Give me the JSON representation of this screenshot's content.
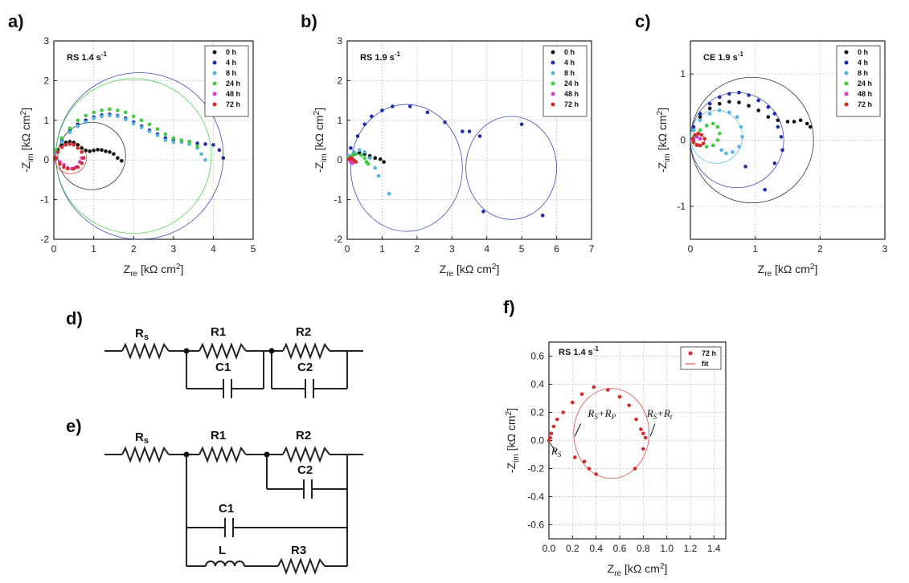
{
  "panel_labels": [
    "a)",
    "b)",
    "c)",
    "d)",
    "e)",
    "f)"
  ],
  "colors": {
    "0 h": "#111111",
    "4 h": "#1f2ea8",
    "8 h": "#56b4e0",
    "24 h": "#3ccc3c",
    "48 h": "#d63cc8",
    "72 h": "#d42a2a"
  },
  "axis_text": {
    "x_main": "Z",
    "x_sub": "re",
    "x_unit": " [kΩ cm",
    "x_sup": "2",
    "x_close": "]",
    "y_main": "-Z",
    "y_sub": "im",
    "y_unit": " [kΩ cm",
    "y_sup": "2",
    "y_close": "]"
  },
  "circuits": {
    "d": {
      "Rs": "R",
      "Rs_sub": "s",
      "R1": "R1",
      "R2": "R2",
      "C1": "C1",
      "C2": "C2"
    },
    "e": {
      "Rs": "R",
      "Rs_sub": "s",
      "R1": "R1",
      "R2": "R2",
      "C1": "C1",
      "C2": "C2",
      "L": "L",
      "R3": "R3"
    }
  },
  "chart_data": [
    {
      "panel": "a)",
      "type": "scatter",
      "annotation": "RS 1.4 s",
      "annotation_sup": "-1",
      "xlim": [
        0,
        5
      ],
      "ylim": [
        -2,
        3
      ],
      "xticks": [
        0,
        1,
        2,
        3,
        4,
        5
      ],
      "yticks": [
        -2,
        -1,
        0,
        1,
        2,
        3
      ],
      "grid": true,
      "legend_position": "top-right",
      "series": [
        {
          "name": "0 h",
          "x": [
            0.03,
            0.1,
            0.2,
            0.3,
            0.4,
            0.5,
            0.6,
            0.7,
            0.8,
            0.9,
            1.0,
            1.1,
            1.2,
            1.3,
            1.4,
            1.5,
            1.6,
            1.7
          ],
          "y": [
            0.05,
            0.25,
            0.38,
            0.44,
            0.46,
            0.44,
            0.38,
            0.3,
            0.24,
            0.22,
            0.24,
            0.26,
            0.25,
            0.22,
            0.2,
            0.15,
            0.05,
            -0.02
          ]
        },
        {
          "name": "4 h",
          "x": [
            0.05,
            0.2,
            0.4,
            0.6,
            0.8,
            1.0,
            1.2,
            1.4,
            1.6,
            1.8,
            2.0,
            2.2,
            2.4,
            2.6,
            2.8,
            3.0,
            3.2,
            3.4,
            3.6,
            3.8,
            4.0,
            4.15,
            4.25
          ],
          "y": [
            0.2,
            0.5,
            0.75,
            0.9,
            1.0,
            1.08,
            1.13,
            1.15,
            1.12,
            1.05,
            0.95,
            0.85,
            0.75,
            0.65,
            0.55,
            0.5,
            0.48,
            0.46,
            0.42,
            0.4,
            0.38,
            0.25,
            0.05
          ]
        },
        {
          "name": "8 h",
          "x": [
            0.05,
            0.2,
            0.4,
            0.6,
            0.8,
            1.0,
            1.2,
            1.4,
            1.6,
            1.8,
            2.0,
            2.2,
            2.4,
            2.6,
            2.8,
            3.0,
            3.2,
            3.4,
            3.6,
            3.7,
            3.8
          ],
          "y": [
            0.2,
            0.45,
            0.7,
            0.85,
            0.95,
            1.05,
            1.1,
            1.12,
            1.1,
            1.02,
            0.92,
            0.82,
            0.72,
            0.62,
            0.5,
            0.45,
            0.45,
            0.4,
            0.3,
            0.15,
            0.0
          ]
        },
        {
          "name": "24 h",
          "x": [
            0.05,
            0.2,
            0.4,
            0.6,
            0.8,
            1.0,
            1.2,
            1.4,
            1.6,
            1.8,
            2.0,
            2.2,
            2.4,
            2.6,
            2.8,
            3.0,
            3.2,
            3.4,
            3.6
          ],
          "y": [
            0.25,
            0.55,
            0.8,
            1.0,
            1.12,
            1.2,
            1.25,
            1.28,
            1.25,
            1.2,
            1.1,
            1.0,
            0.9,
            0.78,
            0.65,
            0.55,
            0.5,
            0.45,
            0.35
          ]
        },
        {
          "name": "48 h",
          "x": [
            0.05,
            0.15,
            0.25,
            0.35,
            0.45,
            0.55,
            0.65,
            0.7
          ],
          "y": [
            0.05,
            -0.05,
            -0.12,
            -0.2,
            -0.22,
            -0.18,
            -0.05,
            0.05
          ]
        },
        {
          "name": "72 h",
          "x": [
            0.05,
            0.1,
            0.2,
            0.3,
            0.4,
            0.5,
            0.6,
            0.7,
            0.75,
            0.7,
            0.6,
            0.5,
            0.35,
            0.25,
            0.15
          ],
          "y": [
            0.05,
            0.2,
            0.32,
            0.38,
            0.4,
            0.38,
            0.3,
            0.2,
            0.05,
            -0.08,
            -0.18,
            -0.22,
            -0.22,
            -0.18,
            -0.1
          ]
        }
      ],
      "fits": [
        {
          "series": "0 h",
          "cx": 0.95,
          "cy": 0.1,
          "r": 0.85
        },
        {
          "series": "4 h",
          "cx": 2.15,
          "cy": 0.1,
          "r": 2.1
        },
        {
          "series": "24 h",
          "cx": 2.0,
          "cy": 0.1,
          "r": 1.95
        },
        {
          "series": "72 h",
          "cx": 0.42,
          "cy": 0.05,
          "r": 0.4
        }
      ]
    },
    {
      "panel": "b)",
      "type": "scatter",
      "annotation": "RS 1.9 s",
      "annotation_sup": "-1",
      "xlim": [
        0,
        7
      ],
      "ylim": [
        -2,
        3
      ],
      "xticks": [
        0,
        1,
        2,
        3,
        4,
        5,
        6,
        7
      ],
      "yticks": [
        -2,
        -1,
        0,
        1,
        2,
        3
      ],
      "grid": true,
      "legend_position": "top-right",
      "series": [
        {
          "name": "0 h",
          "x": [
            0.05,
            0.2,
            0.35,
            0.5,
            0.65,
            0.8,
            0.95,
            1.05
          ],
          "y": [
            0.05,
            0.15,
            0.18,
            0.15,
            0.1,
            0.05,
            0.02,
            -0.05
          ]
        },
        {
          "name": "4 h",
          "x": [
            0.1,
            0.3,
            0.5,
            0.7,
            1.0,
            1.3,
            1.8,
            2.3,
            2.8,
            3.3,
            3.5,
            3.8,
            3.9,
            5.0,
            5.6
          ],
          "y": [
            0.3,
            0.6,
            0.9,
            1.1,
            1.25,
            1.35,
            1.35,
            1.2,
            0.95,
            0.72,
            0.72,
            0.6,
            -1.3,
            0.9,
            -1.4
          ]
        },
        {
          "name": "8 h",
          "x": [
            0.05,
            0.2,
            0.35,
            0.5,
            0.65,
            0.8,
            0.9,
            1.2
          ],
          "y": [
            0.1,
            0.2,
            0.25,
            0.2,
            0.05,
            -0.2,
            -0.4,
            -0.85
          ]
        },
        {
          "name": "24 h",
          "x": [
            0.05,
            0.15,
            0.25,
            0.4,
            0.5,
            0.55,
            0.6
          ],
          "y": [
            0.05,
            0.12,
            0.15,
            0.12,
            0.05,
            -0.05,
            -0.1
          ]
        },
        {
          "name": "48 h",
          "x": [
            0.05,
            0.1,
            0.15
          ],
          "y": [
            0.02,
            -0.05,
            -0.08
          ]
        },
        {
          "name": "72 h",
          "x": [
            0.05,
            0.1,
            0.15,
            0.2,
            0.25
          ],
          "y": [
            0.02,
            0.05,
            0.03,
            -0.02,
            -0.05
          ]
        }
      ],
      "fits": [
        {
          "series": "4 h",
          "cx": 1.7,
          "cy": -0.2,
          "r": 1.6
        },
        {
          "series": "4 h",
          "cx": 4.7,
          "cy": -0.2,
          "r": 1.3
        }
      ]
    },
    {
      "panel": "c)",
      "type": "scatter",
      "annotation": "CE 1.9 s",
      "annotation_sup": "-1",
      "xlim": [
        0,
        3
      ],
      "ylim": [
        -1.5,
        1.5
      ],
      "xticks": [
        0,
        1,
        2,
        3
      ],
      "yticks": [
        -1,
        0,
        1
      ],
      "grid": true,
      "legend_position": "top-right",
      "series": [
        {
          "name": "0 h",
          "x": [
            0.05,
            0.15,
            0.3,
            0.45,
            0.6,
            0.75,
            0.9,
            1.05,
            1.2,
            1.35,
            1.5,
            1.6,
            1.7,
            1.8,
            1.85
          ],
          "y": [
            0.15,
            0.35,
            0.48,
            0.55,
            0.58,
            0.57,
            0.52,
            0.45,
            0.35,
            0.3,
            0.28,
            0.28,
            0.3,
            0.25,
            0.2
          ]
        },
        {
          "name": "4 h",
          "x": [
            0.05,
            0.15,
            0.3,
            0.45,
            0.6,
            0.75,
            0.9,
            1.05,
            1.2,
            1.3,
            1.35,
            1.4,
            1.42,
            1.3,
            1.15,
            0.85
          ],
          "y": [
            0.2,
            0.4,
            0.55,
            0.65,
            0.7,
            0.72,
            0.68,
            0.6,
            0.5,
            0.4,
            0.2,
            0.05,
            -0.15,
            -0.35,
            -0.75,
            -0.4
          ]
        },
        {
          "name": "8 h",
          "x": [
            0.05,
            0.15,
            0.3,
            0.45,
            0.6,
            0.72,
            0.78,
            0.8,
            0.75,
            0.65,
            0.55,
            0.48
          ],
          "y": [
            0.15,
            0.3,
            0.4,
            0.45,
            0.42,
            0.35,
            0.2,
            0.05,
            -0.1,
            -0.18,
            -0.2,
            -0.15
          ]
        },
        {
          "name": "24 h",
          "x": [
            0.05,
            0.15,
            0.25,
            0.35,
            0.42,
            0.45,
            0.42,
            0.35,
            0.25
          ],
          "y": [
            0.05,
            0.15,
            0.22,
            0.25,
            0.2,
            0.1,
            0.0,
            -0.08,
            -0.1
          ]
        },
        {
          "name": "48 h",
          "x": [
            0.05,
            0.1,
            0.15
          ],
          "y": [
            0.02,
            0.05,
            0.02
          ]
        },
        {
          "name": "72 h",
          "x": [
            0.03,
            0.07,
            0.12,
            0.17,
            0.22,
            0.2,
            0.15,
            0.1,
            0.05
          ],
          "y": [
            0.02,
            0.08,
            0.1,
            0.08,
            0.02,
            -0.05,
            -0.08,
            -0.07,
            -0.03
          ]
        }
      ],
      "fits": [
        {
          "series": "0 h",
          "cx": 0.95,
          "cy": 0.0,
          "r": 0.95
        },
        {
          "series": "4 h",
          "cx": 0.72,
          "cy": 0.0,
          "r": 0.72
        },
        {
          "series": "8 h",
          "cx": 0.4,
          "cy": 0.05,
          "r": 0.4
        },
        {
          "series": "72 h",
          "cx": 0.12,
          "cy": 0.0,
          "r": 0.1
        }
      ]
    },
    {
      "panel": "f)",
      "type": "scatter",
      "annotation": "RS 1.4 s",
      "annotation_sup": "-1",
      "xlim": [
        0,
        1.5
      ],
      "ylim": [
        -0.7,
        0.7
      ],
      "xticks": [
        0.0,
        0.2,
        0.4,
        0.6,
        0.8,
        1.0,
        1.2,
        1.4
      ],
      "yticks": [
        -0.6,
        -0.4,
        -0.2,
        0.0,
        0.2,
        0.4,
        0.6
      ],
      "grid": true,
      "legend_position": "top-right",
      "series": [
        {
          "name": "72 h",
          "x": [
            0.0,
            0.01,
            0.02,
            0.04,
            0.07,
            0.12,
            0.2,
            0.28,
            0.38,
            0.5,
            0.6,
            0.68,
            0.74,
            0.78,
            0.8,
            0.82,
            0.8,
            0.73,
            0.4,
            0.34,
            0.3,
            0.22
          ],
          "y": [
            0.0,
            0.02,
            0.05,
            0.1,
            0.15,
            0.2,
            0.27,
            0.33,
            0.38,
            0.36,
            0.31,
            0.25,
            0.15,
            0.08,
            0.05,
            0.02,
            -0.06,
            -0.2,
            -0.24,
            -0.2,
            -0.15,
            -0.12
          ]
        },
        {
          "name": "fit",
          "x": [],
          "y": []
        }
      ],
      "fits": [
        {
          "series": "72 h",
          "cx": 0.53,
          "cy": 0.05,
          "r": 0.32
        }
      ],
      "labels": {
        "rs": "R",
        "rs_sub": "S",
        "rsrp": "R",
        "rsrp_sub1": "S",
        "rsrp_plus": "+R",
        "rsrp_sub2": "P",
        "rsrt": "R",
        "rsrt_sub1": "S",
        "rsrt_plus": "+R",
        "rsrt_sub2": "t"
      }
    }
  ]
}
